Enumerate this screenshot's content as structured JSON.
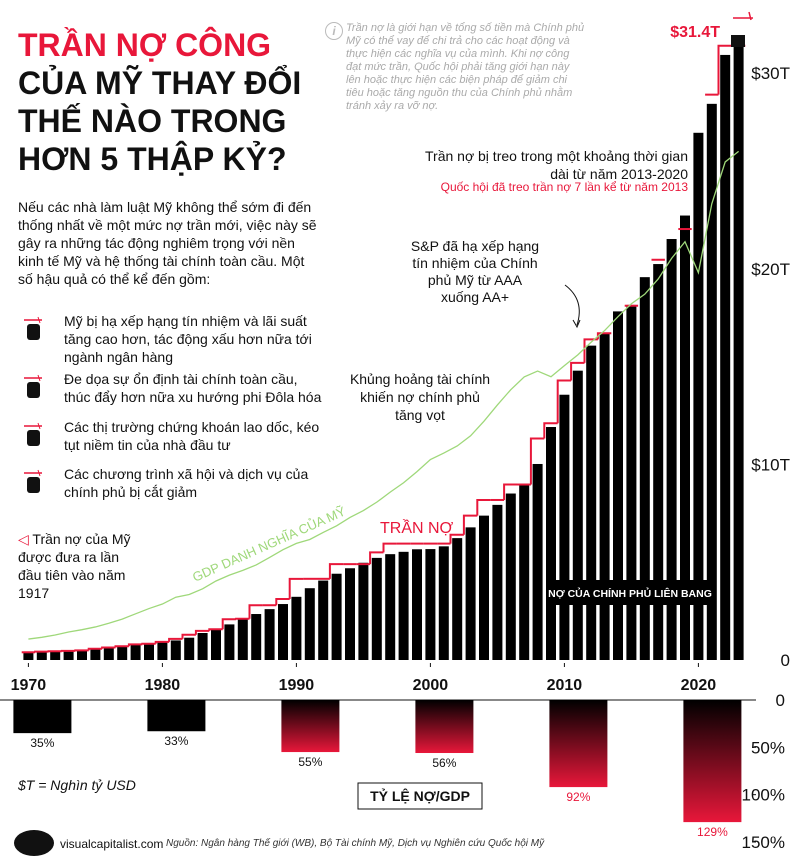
{
  "header": {
    "title_lines": [
      "TRẦN NỢ CÔNG",
      "CỦA MỸ THAY ĐỔI",
      "THẾ NÀO TRONG",
      "HƠN 5 THẬP KỶ?"
    ]
  },
  "note": "Trần nợ là giới hạn về tổng số tiền mà Chính phủ Mỹ có thể vay để chi trả cho các hoạt động và thực hiện các nghĩa vụ của mình. Khi nợ công đạt mức trần, Quốc hội phải tăng giới hạn này lên hoặc thực hiện các biện pháp để giảm chi tiêu hoặc tăng nguồn thu của Chính phủ nhằm tránh xảy ra vỡ nợ.",
  "intro": "Nếu các nhà làm luật Mỹ không thể sớm đi đến thống nhất về một mức nợ trần mới, việc này sẽ gây ra những tác động nghiêm trọng với nền kinh tế Mỹ và hệ thống tài chính toàn cầu. Một số hậu quả có thể kể đến gồm:",
  "consequences": [
    "Mỹ bị hạ xếp hạng tín nhiệm và lãi suất tăng cao hơn, tác động xấu hơn nữa tới ngành ngân hàng",
    "Đe dọa sự ổn định tài chính toàn cầu, thúc đẩy hơn nữa xu hướng phi Đôla hóa",
    "Các thị trường chứng khoán lao dốc, kéo tụt niềm tin của nhà đầu tư",
    "Các chương trình xã hội và dịch vụ của chính phủ bị cắt giảm"
  ],
  "first_ceiling": "Trần nợ của Mỹ được đưa ra lần đầu tiên vào năm 1917",
  "unit_note": "$T = Nghìn tỷ USD",
  "footer": {
    "brand": "visualcapitalist.com",
    "source": "Nguồn: Ngân hàng Thế giới (WB), Bộ Tài chính Mỹ, Dịch vụ Nghiên cứu Quốc hội Mỹ"
  },
  "chart_data": [
    {
      "type": "combo",
      "x": [
        1970,
        1971,
        1972,
        1973,
        1974,
        1975,
        1976,
        1977,
        1978,
        1979,
        1980,
        1981,
        1982,
        1983,
        1984,
        1985,
        1986,
        1987,
        1988,
        1989,
        1990,
        1991,
        1992,
        1993,
        1994,
        1995,
        1996,
        1997,
        1998,
        1999,
        2000,
        2001,
        2002,
        2003,
        2004,
        2005,
        2006,
        2007,
        2008,
        2009,
        2010,
        2011,
        2012,
        2013,
        2014,
        2015,
        2016,
        2017,
        2018,
        2019,
        2020,
        2021,
        2022,
        2023
      ],
      "series": [
        {
          "name": "NỢ CỦA CHÍNH PHỦ LIÊN BANG",
          "mark": "bar",
          "color": "#000000",
          "values": [
            0.38,
            0.41,
            0.44,
            0.47,
            0.48,
            0.54,
            0.63,
            0.71,
            0.78,
            0.83,
            0.91,
            1.0,
            1.14,
            1.38,
            1.57,
            1.82,
            2.13,
            2.35,
            2.6,
            2.86,
            3.23,
            3.67,
            4.06,
            4.41,
            4.69,
            4.97,
            5.22,
            5.41,
            5.53,
            5.66,
            5.67,
            5.81,
            6.23,
            6.78,
            7.38,
            7.93,
            8.51,
            9.01,
            10.02,
            11.91,
            13.56,
            14.79,
            16.07,
            16.74,
            17.82,
            18.15,
            19.57,
            20.24,
            21.52,
            22.72,
            26.95,
            28.43,
            30.93,
            31.4
          ]
        },
        {
          "name": "TRẦN NỢ",
          "mark": "step",
          "color": "#e8173a",
          "values": [
            0.395,
            0.43,
            0.45,
            0.465,
            0.495,
            0.577,
            0.636,
            0.7,
            0.798,
            0.83,
            0.925,
            1.08,
            1.29,
            1.49,
            1.57,
            2.08,
            2.11,
            2.8,
            2.8,
            3.12,
            4.15,
            4.15,
            4.15,
            4.9,
            4.9,
            4.9,
            5.5,
            5.95,
            5.95,
            5.95,
            5.95,
            5.95,
            6.4,
            7.38,
            8.18,
            8.18,
            8.97,
            8.97,
            11.32,
            12.1,
            14.29,
            15.19,
            16.39,
            16.7,
            null,
            18.11,
            null,
            20.46,
            null,
            22.03,
            null,
            28.9,
            31.4,
            31.4
          ]
        },
        {
          "name": "GDP DANH NGHĨA CỦA MỸ",
          "mark": "line",
          "color": "#9fd87a",
          "values": [
            1.07,
            1.16,
            1.28,
            1.43,
            1.55,
            1.69,
            1.88,
            2.09,
            2.36,
            2.63,
            2.86,
            3.21,
            3.35,
            3.64,
            4.04,
            4.34,
            4.58,
            4.86,
            5.24,
            5.64,
            5.96,
            6.16,
            6.52,
            6.86,
            7.29,
            7.64,
            8.07,
            8.58,
            9.06,
            9.63,
            10.25,
            10.58,
            10.94,
            11.46,
            12.21,
            13.04,
            13.82,
            14.47,
            14.77,
            14.48,
            15.05,
            15.6,
            16.25,
            16.84,
            17.55,
            18.21,
            18.7,
            19.48,
            20.53,
            21.38,
            19.8,
            23.32,
            25.46,
            26.0
          ]
        }
      ],
      "xlim": [
        1969,
        2024
      ],
      "xticks": [
        1970,
        1980,
        1990,
        2000,
        2010,
        2020
      ],
      "ylim": [
        0,
        32
      ],
      "yticks": [
        0,
        {
          "value": 10,
          "label": "$10T"
        },
        {
          "value": 20,
          "label": "$20T"
        },
        {
          "value": 30,
          "label": "$30T"
        }
      ],
      "annotations": {
        "peak": "$31.4T",
        "suspended": "Trần nợ bị treo trong một khoảng thời gian dài từ năm 2013-2020",
        "suspended_count": "Quốc hội đã treo trần nợ 7 lần kể từ năm 2013",
        "downgrade": "S&P đã hạ xếp hạng tín nhiệm của Chính phủ Mỹ từ AAA xuống AA+",
        "crisis": "Khủng hoảng tài chính khiến nợ chính phủ tăng vọt"
      }
    },
    {
      "type": "bar",
      "title": "TỶ LỆ NỢ/GDP",
      "x": [
        1970,
        1980,
        1990,
        2000,
        2010,
        2020
      ],
      "values": [
        35,
        33,
        55,
        56,
        92,
        129
      ],
      "value_labels": [
        "35%",
        "33%",
        "55%",
        "56%",
        "92%",
        "129%"
      ],
      "color": "#e8173a",
      "xlim": [
        1969,
        2024
      ],
      "ylim": [
        0,
        150
      ],
      "yticks": [
        0,
        {
          "value": 50,
          "label": "50%"
        },
        {
          "value": 100,
          "label": "100%"
        },
        {
          "value": 150,
          "label": "150%"
        }
      ]
    }
  ]
}
